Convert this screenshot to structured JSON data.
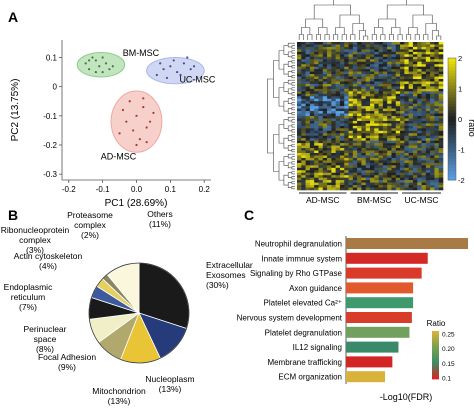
{
  "panels": {
    "a": "A",
    "b": "B",
    "c": "C"
  },
  "chart_data": [
    {
      "panel": "A",
      "type": "scatter",
      "title": "",
      "xlabel": "PC1 (28.69%)",
      "ylabel": "PC2 (13.75%)",
      "xlim": [
        -0.22,
        0.22
      ],
      "ylim": [
        -0.32,
        0.16
      ],
      "xticks": [
        "-0.2",
        "-0.1",
        "0.0",
        "0.1",
        "0.2"
      ],
      "yticks": [
        "0.1",
        "0",
        "-0.1",
        "-0.2",
        "-0.3"
      ],
      "xtick_values": [
        -0.2,
        -0.1,
        0.0,
        0.1,
        0.2
      ],
      "ytick_values": [
        0.1,
        0.0,
        -0.1,
        -0.2,
        -0.3
      ],
      "groups": [
        {
          "name": "BM-MSC",
          "color": "#8fcf8a",
          "point_color": "#3a7a3a",
          "ellipse": {
            "cx": -0.105,
            "cy": 0.075,
            "rx": 0.07,
            "ry": 0.042
          },
          "points": [
            [
              -0.15,
              0.08
            ],
            [
              -0.14,
              0.06
            ],
            [
              -0.12,
              0.09
            ],
            [
              -0.11,
              0.07
            ],
            [
              -0.1,
              0.05
            ],
            [
              -0.13,
              0.1
            ],
            [
              -0.09,
              0.08
            ],
            [
              -0.08,
              0.06
            ],
            [
              -0.12,
              0.05
            ],
            [
              -0.1,
              0.1
            ],
            [
              -0.07,
              0.07
            ],
            [
              -0.14,
              0.09
            ]
          ]
        },
        {
          "name": "UC-MSC",
          "color": "#a9b7ea",
          "point_color": "#3c4e9a",
          "ellipse": {
            "cx": 0.115,
            "cy": 0.055,
            "rx": 0.085,
            "ry": 0.045
          },
          "points": [
            [
              0.06,
              0.04
            ],
            [
              0.08,
              0.06
            ],
            [
              0.1,
              0.07
            ],
            [
              0.12,
              0.05
            ],
            [
              0.14,
              0.08
            ],
            [
              0.16,
              0.06
            ],
            [
              0.09,
              0.03
            ],
            [
              0.11,
              0.09
            ],
            [
              0.13,
              0.04
            ],
            [
              0.15,
              0.1
            ],
            [
              0.07,
              0.08
            ],
            [
              0.17,
              0.07
            ]
          ]
        },
        {
          "name": "AD-MSC",
          "color": "#f0a8a0",
          "point_color": "#a03c36",
          "ellipse": {
            "cx": 0.0,
            "cy": -0.12,
            "rx": 0.075,
            "ry": 0.105
          },
          "points": [
            [
              -0.04,
              -0.08
            ],
            [
              -0.02,
              -0.05
            ],
            [
              0.0,
              -0.1
            ],
            [
              0.02,
              -0.07
            ],
            [
              0.04,
              -0.12
            ],
            [
              -0.01,
              -0.15
            ],
            [
              0.01,
              -0.18
            ],
            [
              0.03,
              -0.14
            ],
            [
              -0.03,
              -0.12
            ],
            [
              0.05,
              -0.09
            ],
            [
              0.0,
              -0.2
            ],
            [
              0.02,
              -0.04
            ],
            [
              -0.05,
              -0.16
            ],
            [
              0.03,
              -0.19
            ]
          ]
        }
      ]
    },
    {
      "panel": "A",
      "type": "heatmap",
      "col_groups": [
        "AD-MSC",
        "BM-MSC",
        "UC-MSC"
      ],
      "colorbar_ticks": [
        "2",
        "1",
        "0",
        "-1",
        "-2"
      ],
      "colorbar_label": "ratio",
      "range": [
        -2,
        2
      ],
      "rows": 60,
      "cols": 34
    },
    {
      "panel": "B",
      "type": "pie",
      "slices": [
        {
          "label": "Extracellular Exosomes",
          "pct": "(30%)",
          "value": 30,
          "color": "#1a1a1a"
        },
        {
          "label": "Nucleoplasm",
          "pct": "(13%)",
          "value": 13,
          "color": "#253b7a"
        },
        {
          "label": "Mitochondrion",
          "pct": "(13%)",
          "value": 13,
          "color": "#e8c436"
        },
        {
          "label": "Focal Adhesion",
          "pct": "(9%)",
          "value": 9,
          "color": "#b0a86c"
        },
        {
          "label": "Perinuclear space",
          "pct": "(8%)",
          "value": 8,
          "color": "#f1efc8"
        },
        {
          "label": "Endoplasmic reticulum",
          "pct": "(7%)",
          "value": 7,
          "color": "#1a1a1a"
        },
        {
          "label": "Actin cytoskeleton",
          "pct": "(4%)",
          "value": 4,
          "color": "#3e5a9e"
        },
        {
          "label": "Ribonucleoprotein complex",
          "pct": "(3%)",
          "value": 3,
          "color": "#e3d05e"
        },
        {
          "label": "Proteasome complex",
          "pct": "(2%)",
          "value": 2,
          "color": "#8b8560"
        },
        {
          "label": "Others",
          "pct": "(11%)",
          "value": 11,
          "color": "#faf7dc"
        }
      ]
    },
    {
      "panel": "C",
      "type": "bar",
      "orientation": "horizontal",
      "xlabel": "-Log10(FDR)",
      "legend_title": "Ratio",
      "legend_ticks": [
        "0.25",
        "0.20",
        "0.15",
        "0.1"
      ],
      "categories": [
        "Neutrophil degranulation",
        "Innate immnue system",
        "Signaling by Rho GTPase",
        "Axon guidance",
        "Platelet elevated Ca²⁺",
        "Nervous system development",
        "Platelet degranulation",
        "IL12 signaling",
        "Membrane trafficking",
        "ECM organization"
      ],
      "values": [
        10.0,
        6.7,
        6.2,
        5.5,
        5.5,
        5.4,
        5.2,
        4.3,
        3.8,
        3.2
      ],
      "ratios": [
        0.27,
        0.06,
        0.08,
        0.09,
        0.17,
        0.07,
        0.15,
        0.2,
        0.05,
        0.28
      ],
      "colors": [
        "#a87a46",
        "#d42a26",
        "#d93a2a",
        "#e05a2e",
        "#3e9a6c",
        "#d83c2a",
        "#72a05e",
        "#3a8a6a",
        "#d22626",
        "#d8b23a"
      ]
    }
  ]
}
